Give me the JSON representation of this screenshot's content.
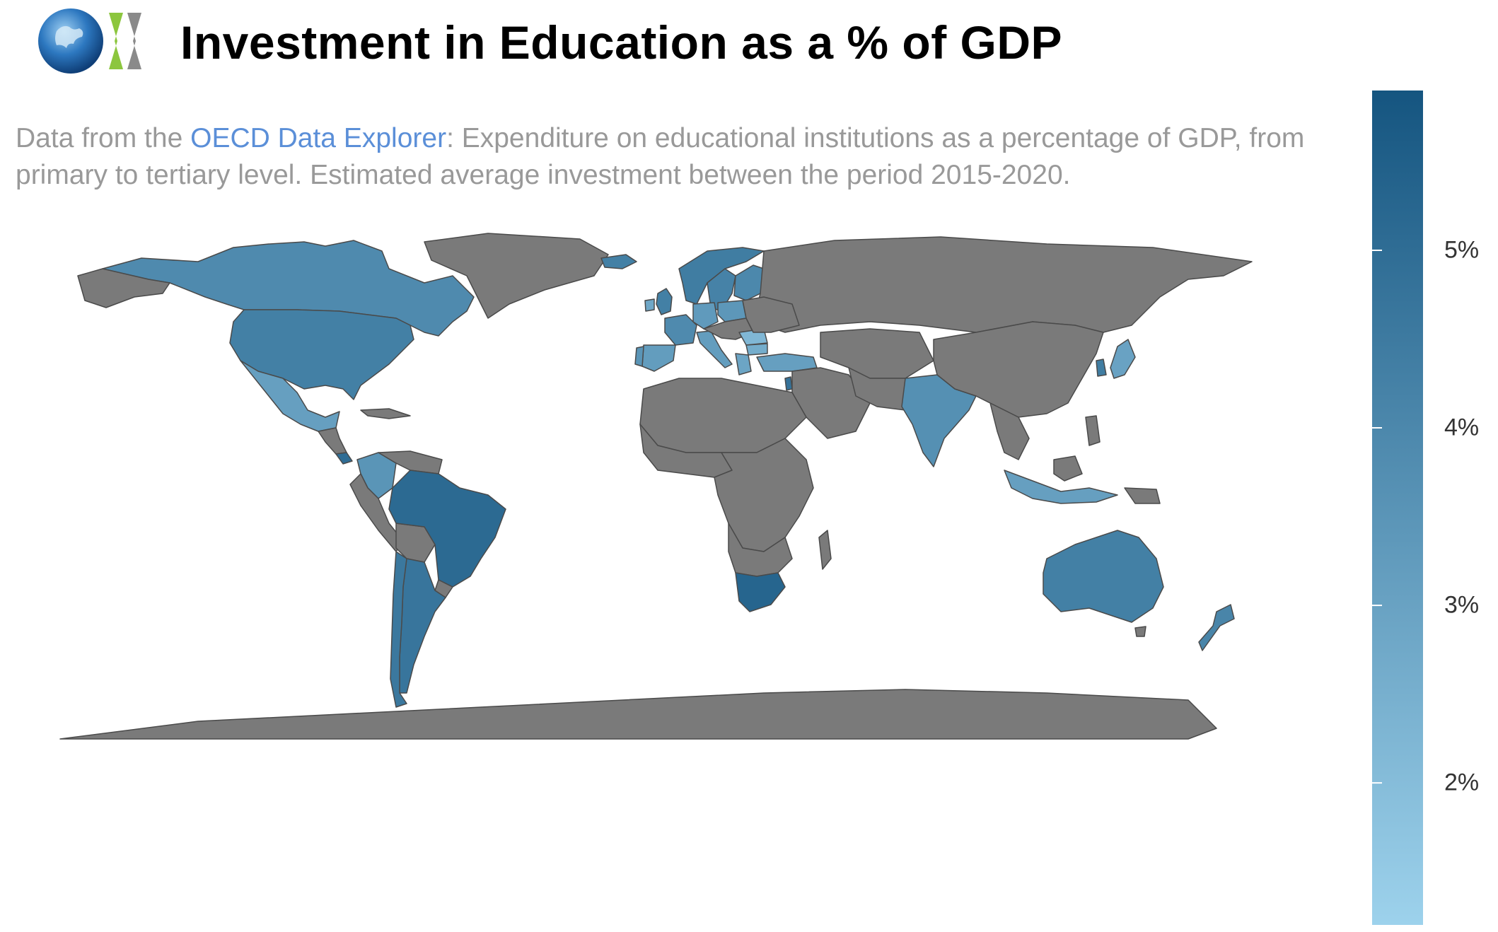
{
  "header": {
    "title": "Investment in Education as a % of GDP"
  },
  "subtitle": {
    "prefix": "Data from the ",
    "link_text": "OECD Data Explorer",
    "suffix": ": Expenditure on educational institutions as a percentage of GDP, from primary to tertiary level. Estimated average investment between the period 2015-2020."
  },
  "colors": {
    "no_data": "#7a7a7a",
    "border": "#4a4a4a",
    "scale_low": "#9dd2ec",
    "scale_high": "#155580",
    "link": "#5b8fd8",
    "subtitle_text": "#999999"
  },
  "legend": {
    "min": 1.2,
    "max": 5.9,
    "ticks": [
      {
        "value": 5,
        "label": "5%"
      },
      {
        "value": 4,
        "label": "4%"
      },
      {
        "value": 3,
        "label": "3%"
      },
      {
        "value": 2,
        "label": "2%"
      }
    ]
  },
  "countries": {
    "Canada": 3.9,
    "United States": 4.3,
    "Mexico": 3.1,
    "Costa Rica": 5.0,
    "Colombia": 3.5,
    "Brazil": 5.1,
    "Argentina": 4.7,
    "Chile": 4.6,
    "South Africa": 5.3,
    "India": 3.7,
    "Indonesia": 3.1,
    "Japan": 3.0,
    "South Korea": 4.4,
    "Australia": 4.3,
    "New Zealand": 4.1,
    "Turkey": 3.1,
    "Greece": 2.9,
    "Romania": 2.2,
    "Bulgaria": 2.6,
    "Spain": 3.2,
    "Portugal": 3.5,
    "France": 3.9,
    "United Kingdom": 4.3,
    "Ireland": 2.8,
    "Italy": 3.2,
    "Germany": 3.3,
    "Poland": 3.4,
    "Norway": 4.4,
    "Sweden": 4.2,
    "Finland": 4.0,
    "Iceland": 4.3,
    "Israel": 4.8
  }
}
